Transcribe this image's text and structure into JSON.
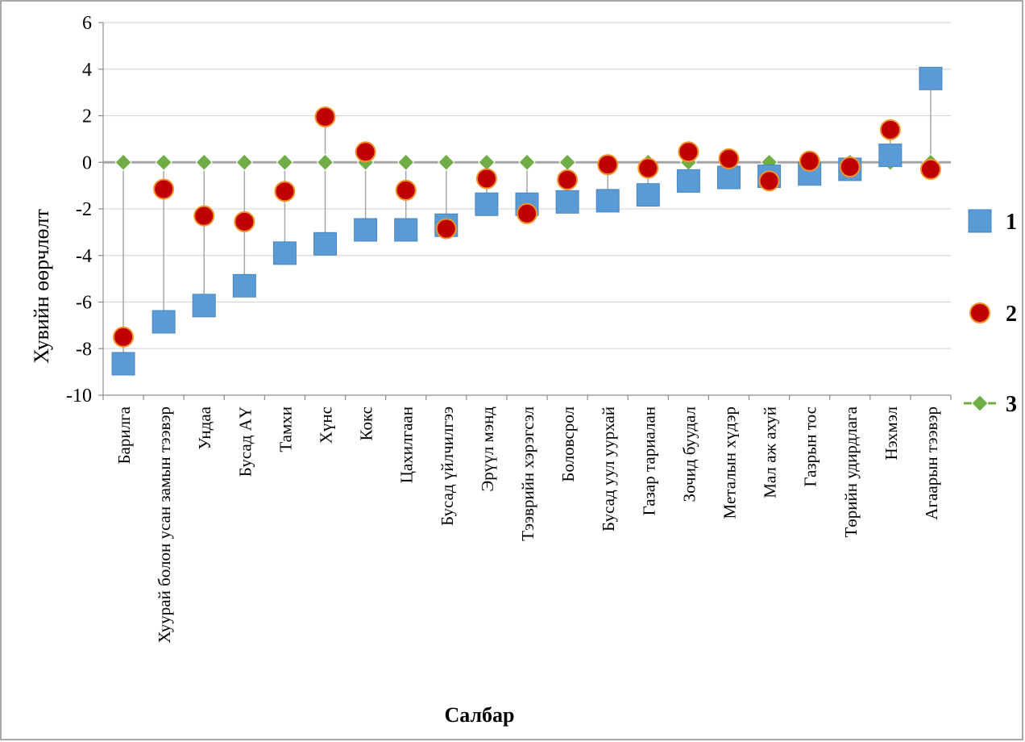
{
  "chart_data": {
    "type": "scatter",
    "xlabel": "Салбар",
    "ylabel": "Хувийн өөрчлөлт",
    "ylim": [
      -10,
      6
    ],
    "yticks": [
      6,
      4,
      2,
      0,
      -2,
      -4,
      -6,
      -8,
      -10
    ],
    "grid": "horizontal",
    "legend_position": "right",
    "categories": [
      "Барилга",
      "Хуурай болон усан замын тээвэр",
      "Ундаа",
      "Бусад АҮ",
      "Тамхи",
      "Хүнс",
      "Кокс",
      "Цахилгаан",
      "Бусад үйлчилгээ",
      "Эрүүл мэнд",
      "Тээврийн хэрэгсэл",
      "Боловсрол",
      "Бусад уул уурхай",
      "Газар тариалан",
      "Зочид буудал",
      "Металын хүдэр",
      "Мал аж ахуй",
      "Газрын тос",
      "Төрийн удирдлага",
      "Нэхмэл",
      "Агаарын тээвэр"
    ],
    "series": [
      {
        "name": "1",
        "marker": "square",
        "color": "#5b9bd5",
        "values": [
          -8.65,
          -6.85,
          -6.15,
          -5.3,
          -3.9,
          -3.5,
          -2.9,
          -2.9,
          -2.7,
          -1.8,
          -1.8,
          -1.7,
          -1.65,
          -1.4,
          -0.8,
          -0.65,
          -0.6,
          -0.5,
          -0.3,
          0.3,
          3.6
        ]
      },
      {
        "name": "2",
        "marker": "circle",
        "color": "#c00000",
        "values": [
          -7.5,
          -1.15,
          -2.3,
          -2.55,
          -1.25,
          1.95,
          0.45,
          -1.2,
          -2.85,
          -0.7,
          -2.2,
          -0.75,
          -0.1,
          -0.25,
          0.45,
          0.15,
          -0.8,
          0.05,
          -0.2,
          1.4,
          -0.3
        ]
      },
      {
        "name": "3",
        "marker": "diamond",
        "color": "#70ad47",
        "values": [
          0,
          0,
          0,
          0,
          0,
          0,
          0,
          0,
          0,
          0,
          0,
          0,
          0,
          0,
          0,
          0,
          0,
          0,
          0,
          0,
          0
        ]
      }
    ]
  }
}
